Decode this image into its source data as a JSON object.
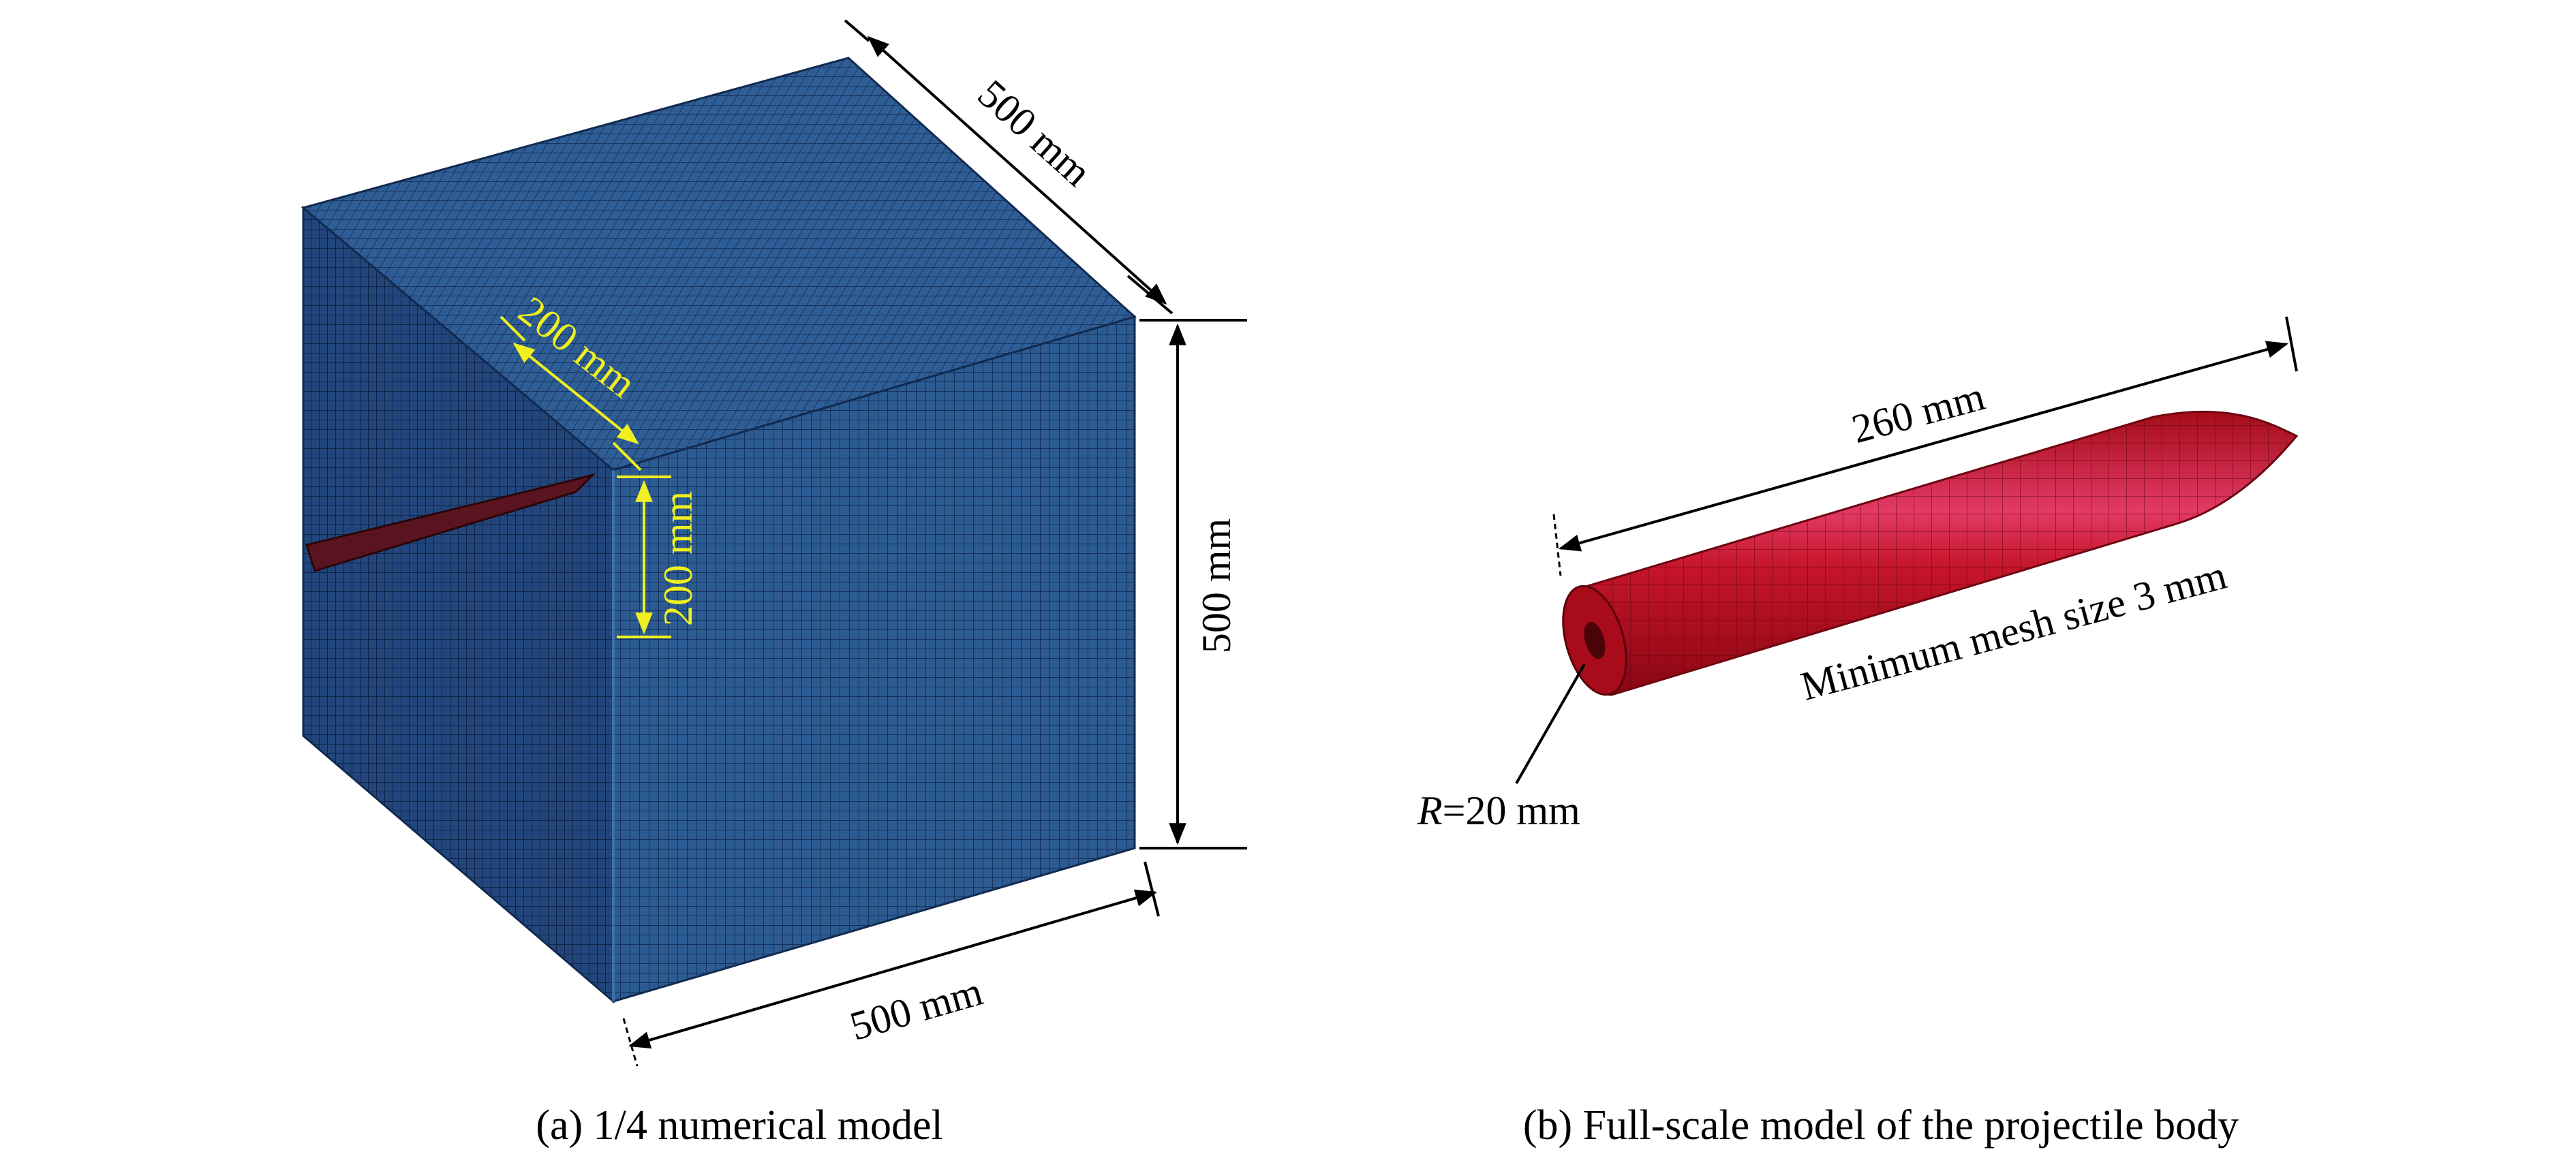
{
  "panel_a": {
    "caption": "(a) 1/4 numerical model",
    "dim_top": "500 mm",
    "dim_right": "500 mm",
    "dim_bottom": "500 mm",
    "dim_inner_diag": "200 mm",
    "dim_inner_vert": "200 mm"
  },
  "panel_b": {
    "caption": "(b) Full-scale model of the projectile body",
    "dim_length": "260 mm",
    "mesh_label": "Minimum mesh size 3 mm",
    "radius_label_italic": "R",
    "radius_label_rest": "=20 mm"
  },
  "colors": {
    "cube_top": "#2f5e96",
    "cube_left": "#1d3f73",
    "cube_right": "#2b5a91",
    "projectile": "#c0101e",
    "annotation_yellow": "#f0f01e"
  }
}
